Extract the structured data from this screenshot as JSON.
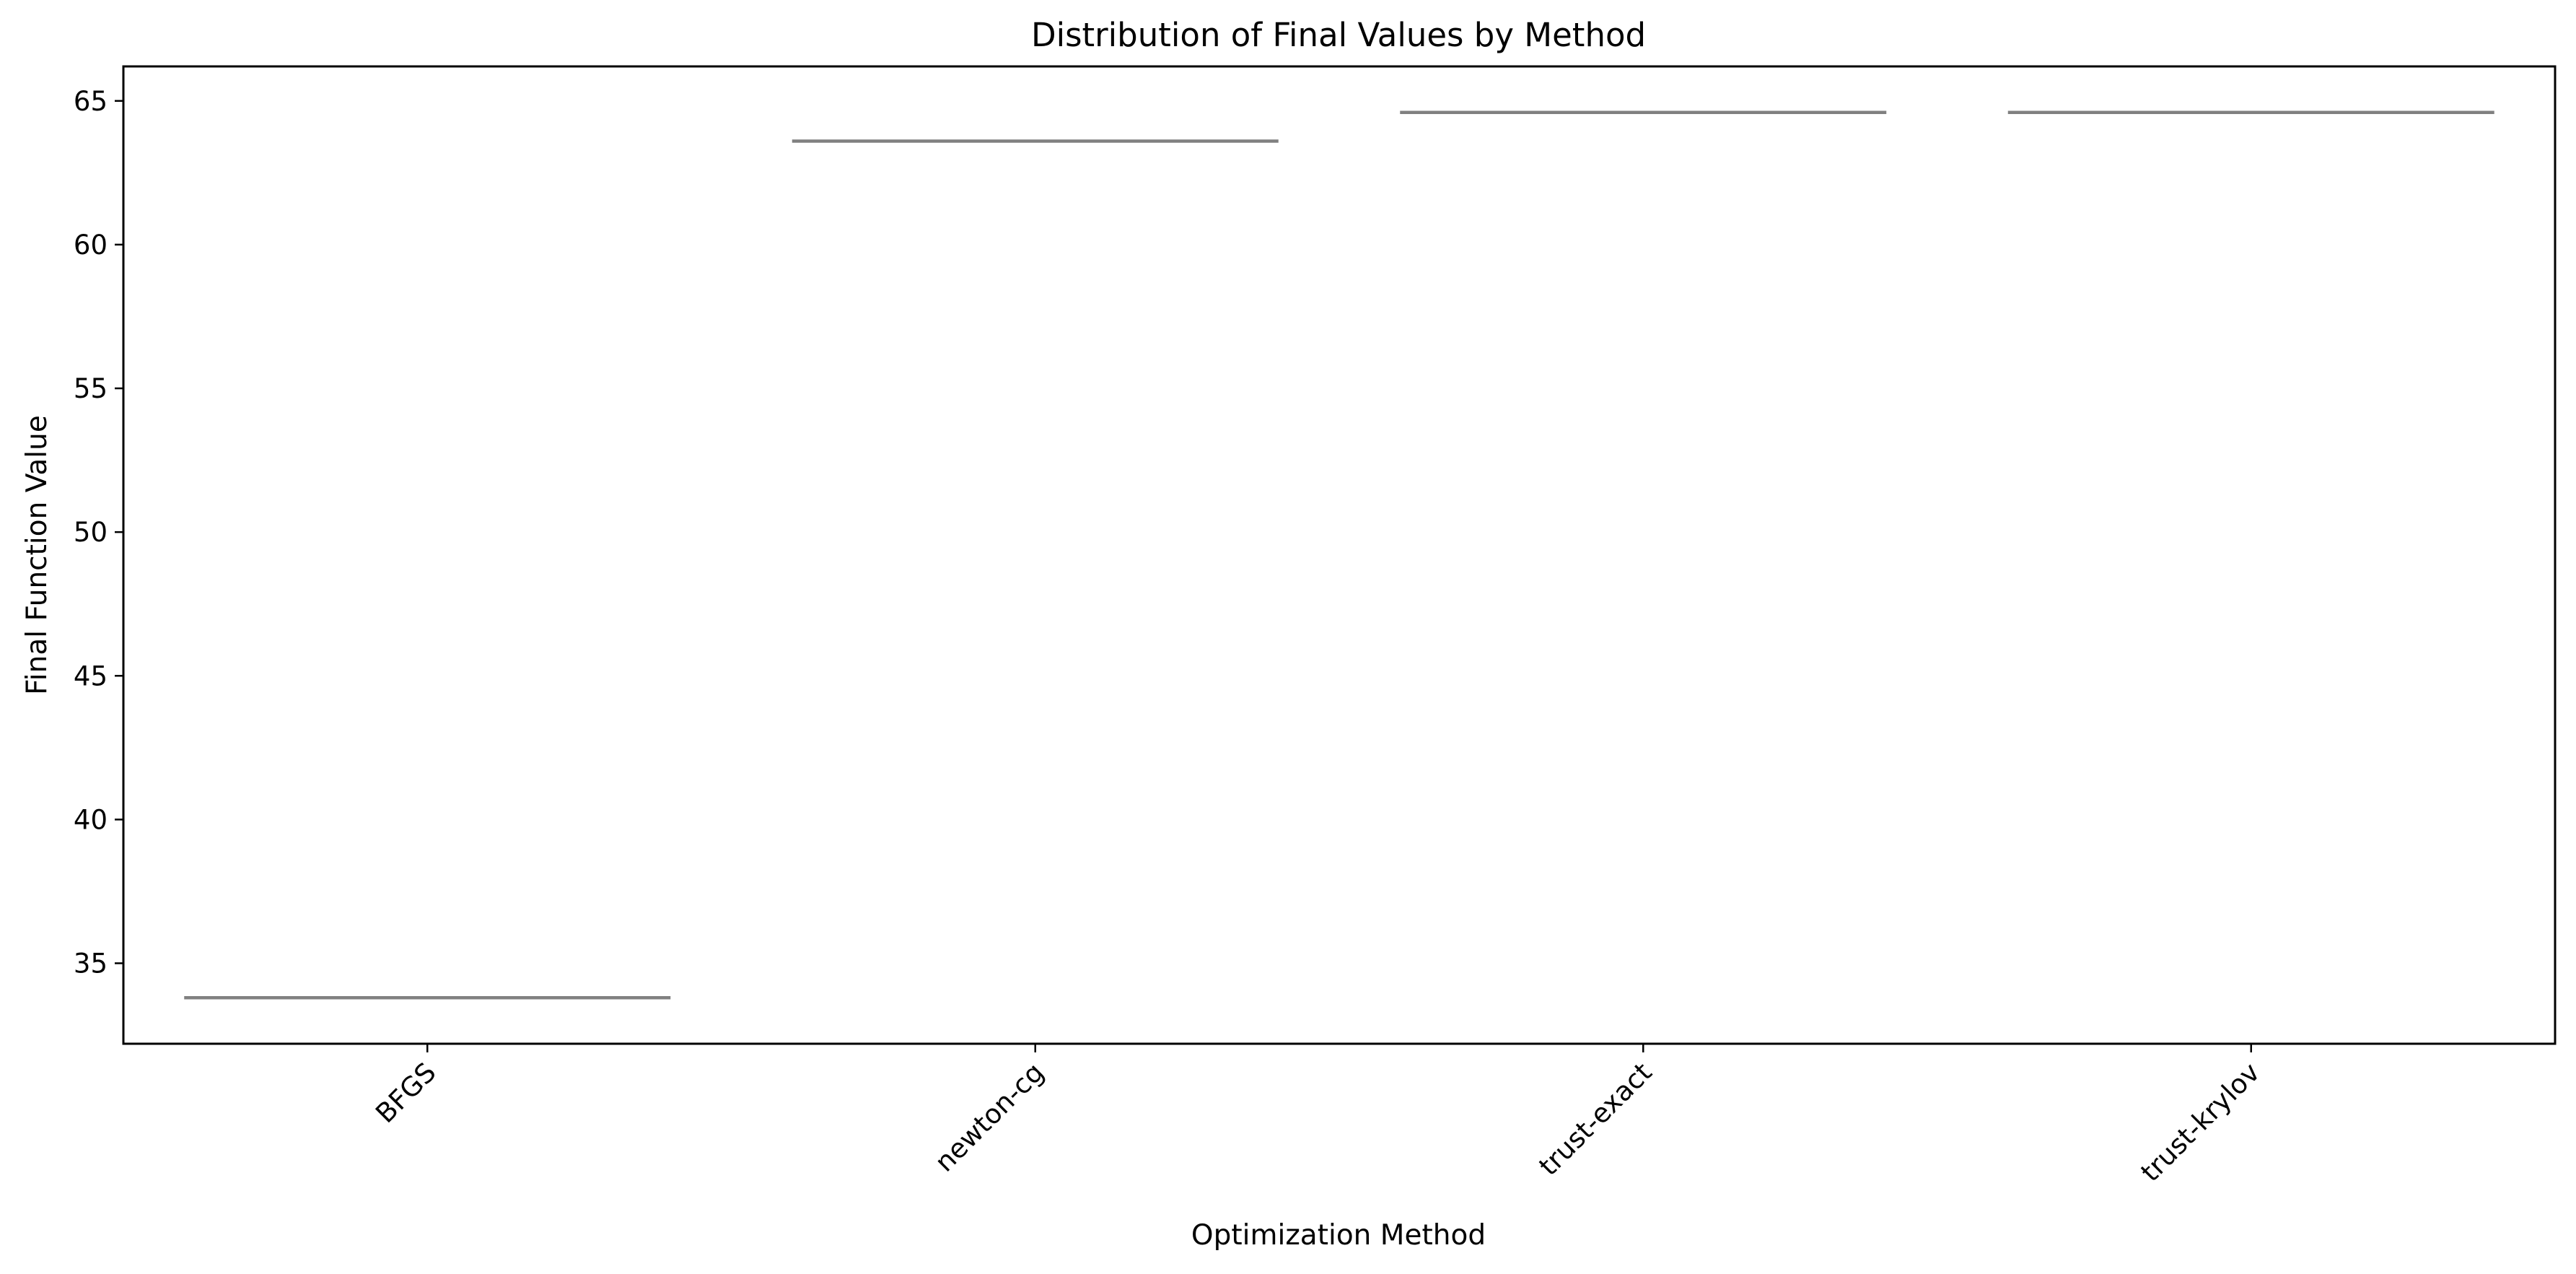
{
  "chart_data": {
    "type": "box",
    "title": "Distribution of Final Values by Method",
    "xlabel": "Optimization Method",
    "ylabel": "Final Function Value",
    "categories": [
      "BFGS",
      "newton-cg",
      "trust-exact",
      "trust-krylov"
    ],
    "values": [
      33.8,
      63.6,
      64.6,
      64.6
    ],
    "ylim": [
      32.2,
      66.2
    ],
    "yticks": [
      35,
      40,
      45,
      50,
      55,
      60,
      65
    ],
    "grid": false,
    "x_tick_rotation_deg": 45,
    "colors": {
      "box_line": "#808080",
      "axes": "#000000",
      "background": "#ffffff"
    }
  }
}
